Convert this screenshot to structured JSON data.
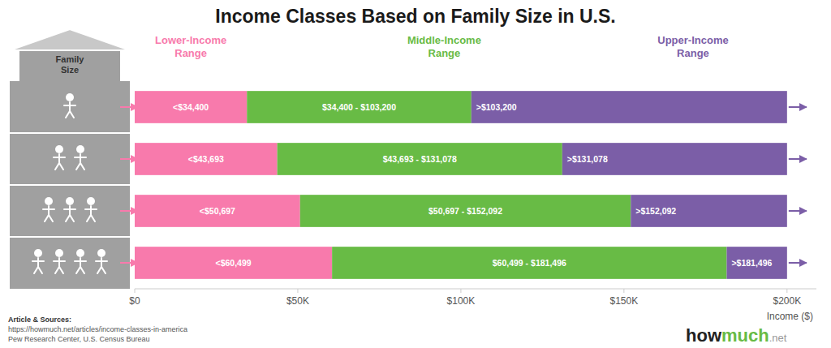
{
  "chart_data": {
    "type": "bar",
    "orientation": "horizontal",
    "stacked": true,
    "grid": false,
    "title": "Income Classes Based on Family Size in U.S.",
    "categories": [
      null,
      null,
      null,
      null
    ],
    "family_size_label": "Family\nSize",
    "family_sizes": [
      1,
      2,
      3,
      4
    ],
    "x_label": "Income ($)",
    "xlim": [
      0,
      209000
    ],
    "xticks": [
      {
        "value": 0,
        "label": "$0"
      },
      {
        "value": 50000,
        "label": "$50K"
      },
      {
        "value": 100000,
        "label": "$100K"
      },
      {
        "value": 150000,
        "label": "$150K"
      },
      {
        "value": 200000,
        "label": "$200K"
      }
    ],
    "series": [
      {
        "name": "Lower-Income\nRange",
        "color": "#f87aac",
        "values": [
          34400,
          43693,
          50697,
          60499
        ],
        "labels": [
          "<$34,400",
          "<$43,693",
          "<$50,697",
          "<$60,499"
        ]
      },
      {
        "name": "Middle-Income\nRange",
        "color": "#68bb45",
        "values": [
          68800,
          87385,
          101395,
          120997
        ],
        "labels": [
          "$34,400 - $103,200",
          "$43,693 - $131,078",
          "$50,697 - $152,092",
          "$60,499 - $181,496"
        ]
      },
      {
        "name": "Upper-Income\nRange",
        "color": "#7b5ea7",
        "values": [
          96800,
          68922,
          47908,
          18504
        ],
        "labels": [
          ">$103,200",
          ">$131,078",
          ">$152,092",
          ">$181,496"
        ]
      }
    ],
    "source": [
      "Article & Sources:",
      "https://howmuch.net/articles/income-classes-in-america",
      "Pew Research Center, U.S. Census Bureau"
    ],
    "brand": [
      "how",
      "much",
      ".net"
    ],
    "brand_colors": [
      "#222222",
      "#68bb45",
      "#999999"
    ]
  }
}
